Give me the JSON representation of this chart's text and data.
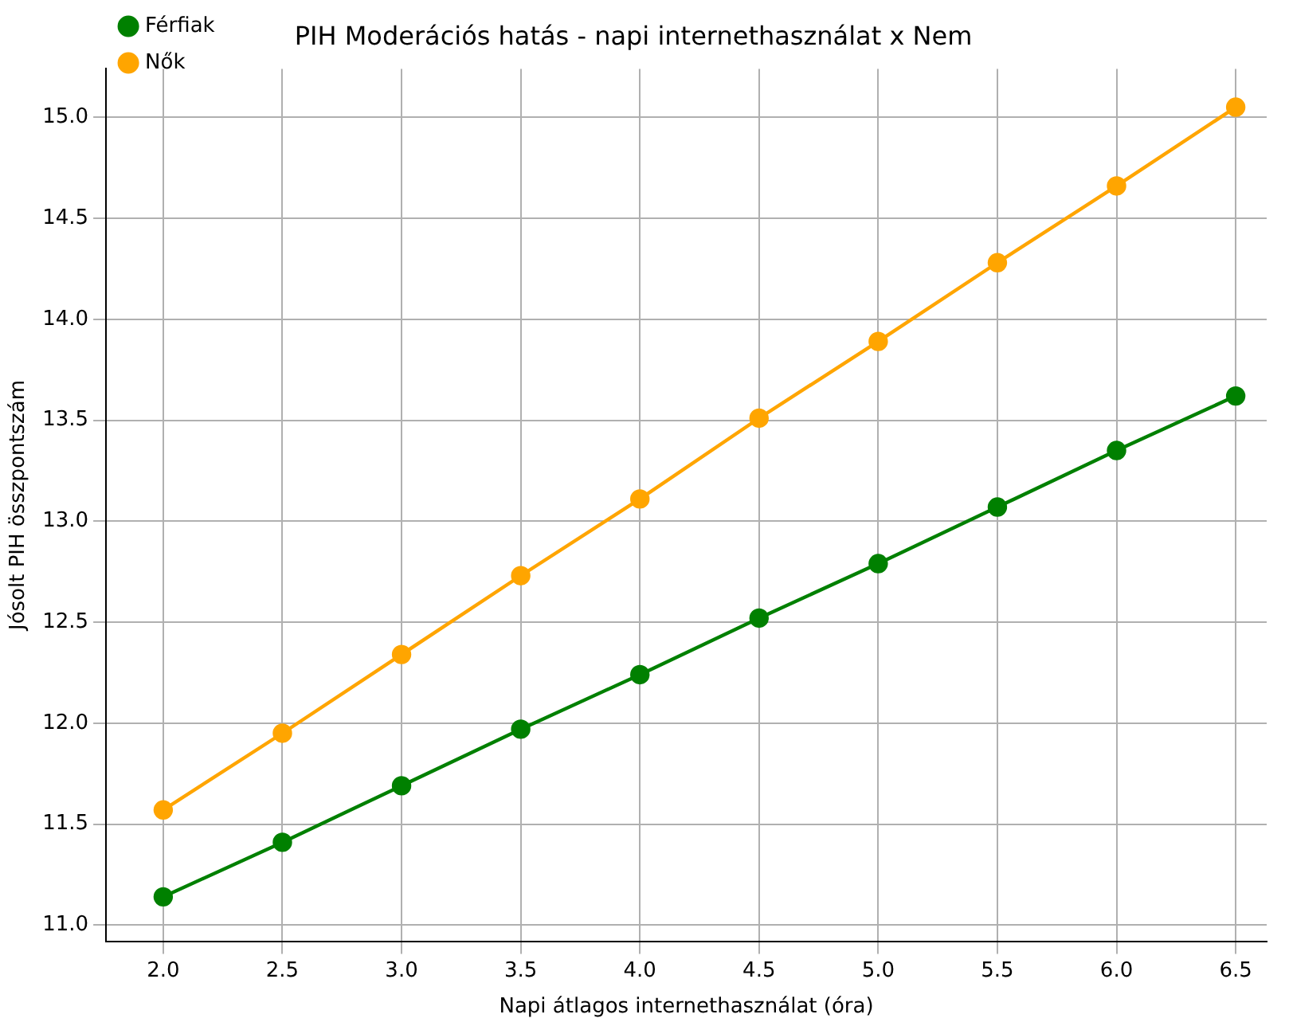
{
  "chart_data": {
    "type": "line",
    "title": "PIH Moderációs hatás - napi internethasználat x Nem",
    "xlabel": "Napi átlagos internethasználat (óra)",
    "ylabel": "Jósolt PIH összpontszám",
    "x": [
      2.0,
      2.5,
      3.0,
      3.5,
      4.0,
      4.5,
      5.0,
      5.5,
      6.0,
      6.5
    ],
    "series": [
      {
        "name": "Férfiak",
        "color": "#008000",
        "values": [
          11.14,
          11.41,
          11.69,
          11.97,
          12.24,
          12.52,
          12.79,
          13.07,
          13.35,
          13.62
        ]
      },
      {
        "name": "Nők",
        "color": "#ffa500",
        "values": [
          11.57,
          11.95,
          12.34,
          12.73,
          13.11,
          13.51,
          13.89,
          14.28,
          14.66,
          15.05
        ]
      }
    ],
    "xlim": [
      1.76,
      6.63
    ],
    "ylim": [
      10.92,
      15.24
    ],
    "xticks": [
      {
        "value": 2,
        "label": "2.0"
      },
      {
        "value": 2.5,
        "label": "2.5"
      },
      {
        "value": 3,
        "label": "3.0"
      },
      {
        "value": 3.5,
        "label": "3.5"
      },
      {
        "value": 4,
        "label": "4.0"
      },
      {
        "value": 4.5,
        "label": "4.5"
      },
      {
        "value": 5,
        "label": "5.0"
      },
      {
        "value": 5.5,
        "label": "5.5"
      },
      {
        "value": 6,
        "label": "6.0"
      },
      {
        "value": 6.5,
        "label": "6.5"
      }
    ],
    "yticks": [
      {
        "value": 11,
        "label": "11.0"
      },
      {
        "value": 11.5,
        "label": "11.5"
      },
      {
        "value": 12,
        "label": "12.0"
      },
      {
        "value": 12.5,
        "label": "12.5"
      },
      {
        "value": 13,
        "label": "13.0"
      },
      {
        "value": 13.5,
        "label": "13.5"
      },
      {
        "value": 14,
        "label": "14.0"
      },
      {
        "value": 14.5,
        "label": "14.5"
      },
      {
        "value": 15,
        "label": "15.0"
      }
    ],
    "grid": true,
    "legend": "top left",
    "marker": "circle",
    "line_style": "solid"
  }
}
